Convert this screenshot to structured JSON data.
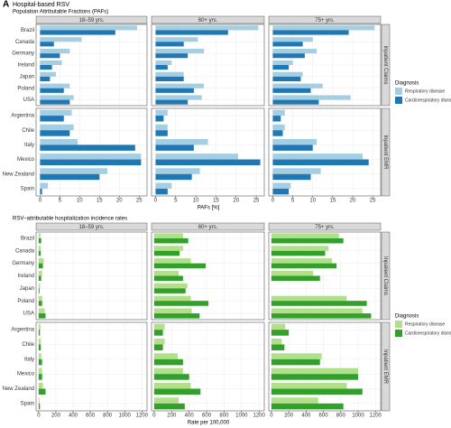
{
  "chart_data": [
    {
      "type": "bar",
      "orientation": "horizontal",
      "panel_label": "A",
      "suptitle": "Hospital-based RSV",
      "title": "Population Attributable Fractions (PAFs)",
      "columns": [
        "18–59 yrs.",
        "60+ yrs.",
        "75+ yrs."
      ],
      "rows": [
        {
          "label": "Inpatient Claims",
          "categories": [
            "Brazil",
            "Canada",
            "Germany",
            "Ireland",
            "Japan",
            "Poland",
            "USA"
          ]
        },
        {
          "label": "Inpatient EMR",
          "categories": [
            "Argentina",
            "Chile",
            "Italy",
            "Mexico",
            "New Zealand",
            "Spain"
          ]
        }
      ],
      "xlabel": "PAFs [%]",
      "xlim": [
        -1,
        27
      ],
      "xticks": [
        0,
        5,
        10,
        15,
        20,
        25
      ],
      "grid": true,
      "legend_title": "Diagnosis",
      "series": [
        {
          "name": "Respiratory disease",
          "color": "#a6cee3",
          "values": [
            [
              [
                24.5,
                10.5,
                7.5,
                5.5,
                4,
                7.5,
                8.5
              ],
              [
                8,
                8.5,
                9.5,
                25.5,
                17,
                2
              ]
            ],
            [
              [
                25.5,
                10.5,
                12,
                4,
                7,
                12,
                11.5
              ],
              [
                3,
                3,
                13,
                20.5,
                11,
                4
              ]
            ],
            [
              [
                25.5,
                10,
                11,
                5,
                7.5,
                12.5,
                19.5
              ],
              [
                3,
                3,
                11,
                22.5,
                12,
                4.5
              ]
            ]
          ]
        },
        {
          "name": "Cardiorespiratory disease",
          "color": "#1f78b4",
          "values": [
            [
              [
                19,
                3.5,
                5,
                3,
                2.5,
                6,
                7.5
              ],
              [
                6,
                7.5,
                24,
                25.5,
                15,
                0.5
              ]
            ],
            [
              [
                18,
                7,
                8,
                3,
                7,
                9.5,
                8
              ],
              [
                2,
                3,
                9.5,
                26,
                9,
                3
              ]
            ],
            [
              [
                19,
                7.5,
                8,
                4,
                7,
                9.5,
                11.5
              ],
              [
                2,
                2.5,
                10,
                24,
                9.5,
                4
              ]
            ]
          ]
        }
      ]
    },
    {
      "type": "bar",
      "orientation": "horizontal",
      "title": "RSV–attributable hospitalization incidence rates",
      "columns": [
        "18–59 yrs.",
        "60+ yrs.",
        "75+ yrs."
      ],
      "rows": [
        {
          "label": "Inpatient Claims",
          "categories": [
            "Brazil",
            "Canada",
            "Germany",
            "Ireland",
            "Japan",
            "Poland",
            "USA"
          ]
        },
        {
          "label": "Inpatient EMR",
          "categories": [
            "Argentina",
            "Chile",
            "Italy",
            "Mexico",
            "New Zealand",
            "Spain"
          ]
        }
      ],
      "xlabel": "Rate per 100,000",
      "xlim": [
        -30,
        1260
      ],
      "xticks": [
        0,
        200,
        400,
        600,
        800,
        1000,
        1200
      ],
      "grid": true,
      "legend_title": "Diagnosis",
      "series": [
        {
          "name": "Respiratory disease",
          "color": "#b2df8a",
          "values": [
            [
              [
                20,
                25,
                60,
                40,
                15,
                40,
                70
              ],
              [
                20,
                25,
                30,
                40,
                50,
                10
              ]
            ],
            [
              [
                330,
                330,
                420,
                280,
                380,
                420,
                430
              ],
              [
                120,
                120,
                270,
                330,
                420,
                280
              ]
            ],
            [
              [
                780,
                660,
                700,
                480,
                null,
                870,
                1050
              ],
              [
                160,
                120,
                580,
                1000,
                870,
                540
              ]
            ]
          ]
        },
        {
          "name": "Cardiorespiratory disease",
          "color": "#33a02c",
          "values": [
            [
              [
                30,
                25,
                50,
                30,
                10,
                40,
                80
              ],
              [
                15,
                25,
                40,
                40,
                80,
                15
              ]
            ],
            [
              [
                390,
                290,
                590,
                330,
                360,
                620,
                520
              ],
              [
                100,
                100,
                330,
                400,
                530,
                350
              ]
            ],
            [
              [
                830,
                620,
                750,
                560,
                null,
                1100,
                1150
              ],
              [
                200,
                150,
                560,
                1000,
                1050,
                830
              ]
            ]
          ]
        }
      ]
    }
  ]
}
